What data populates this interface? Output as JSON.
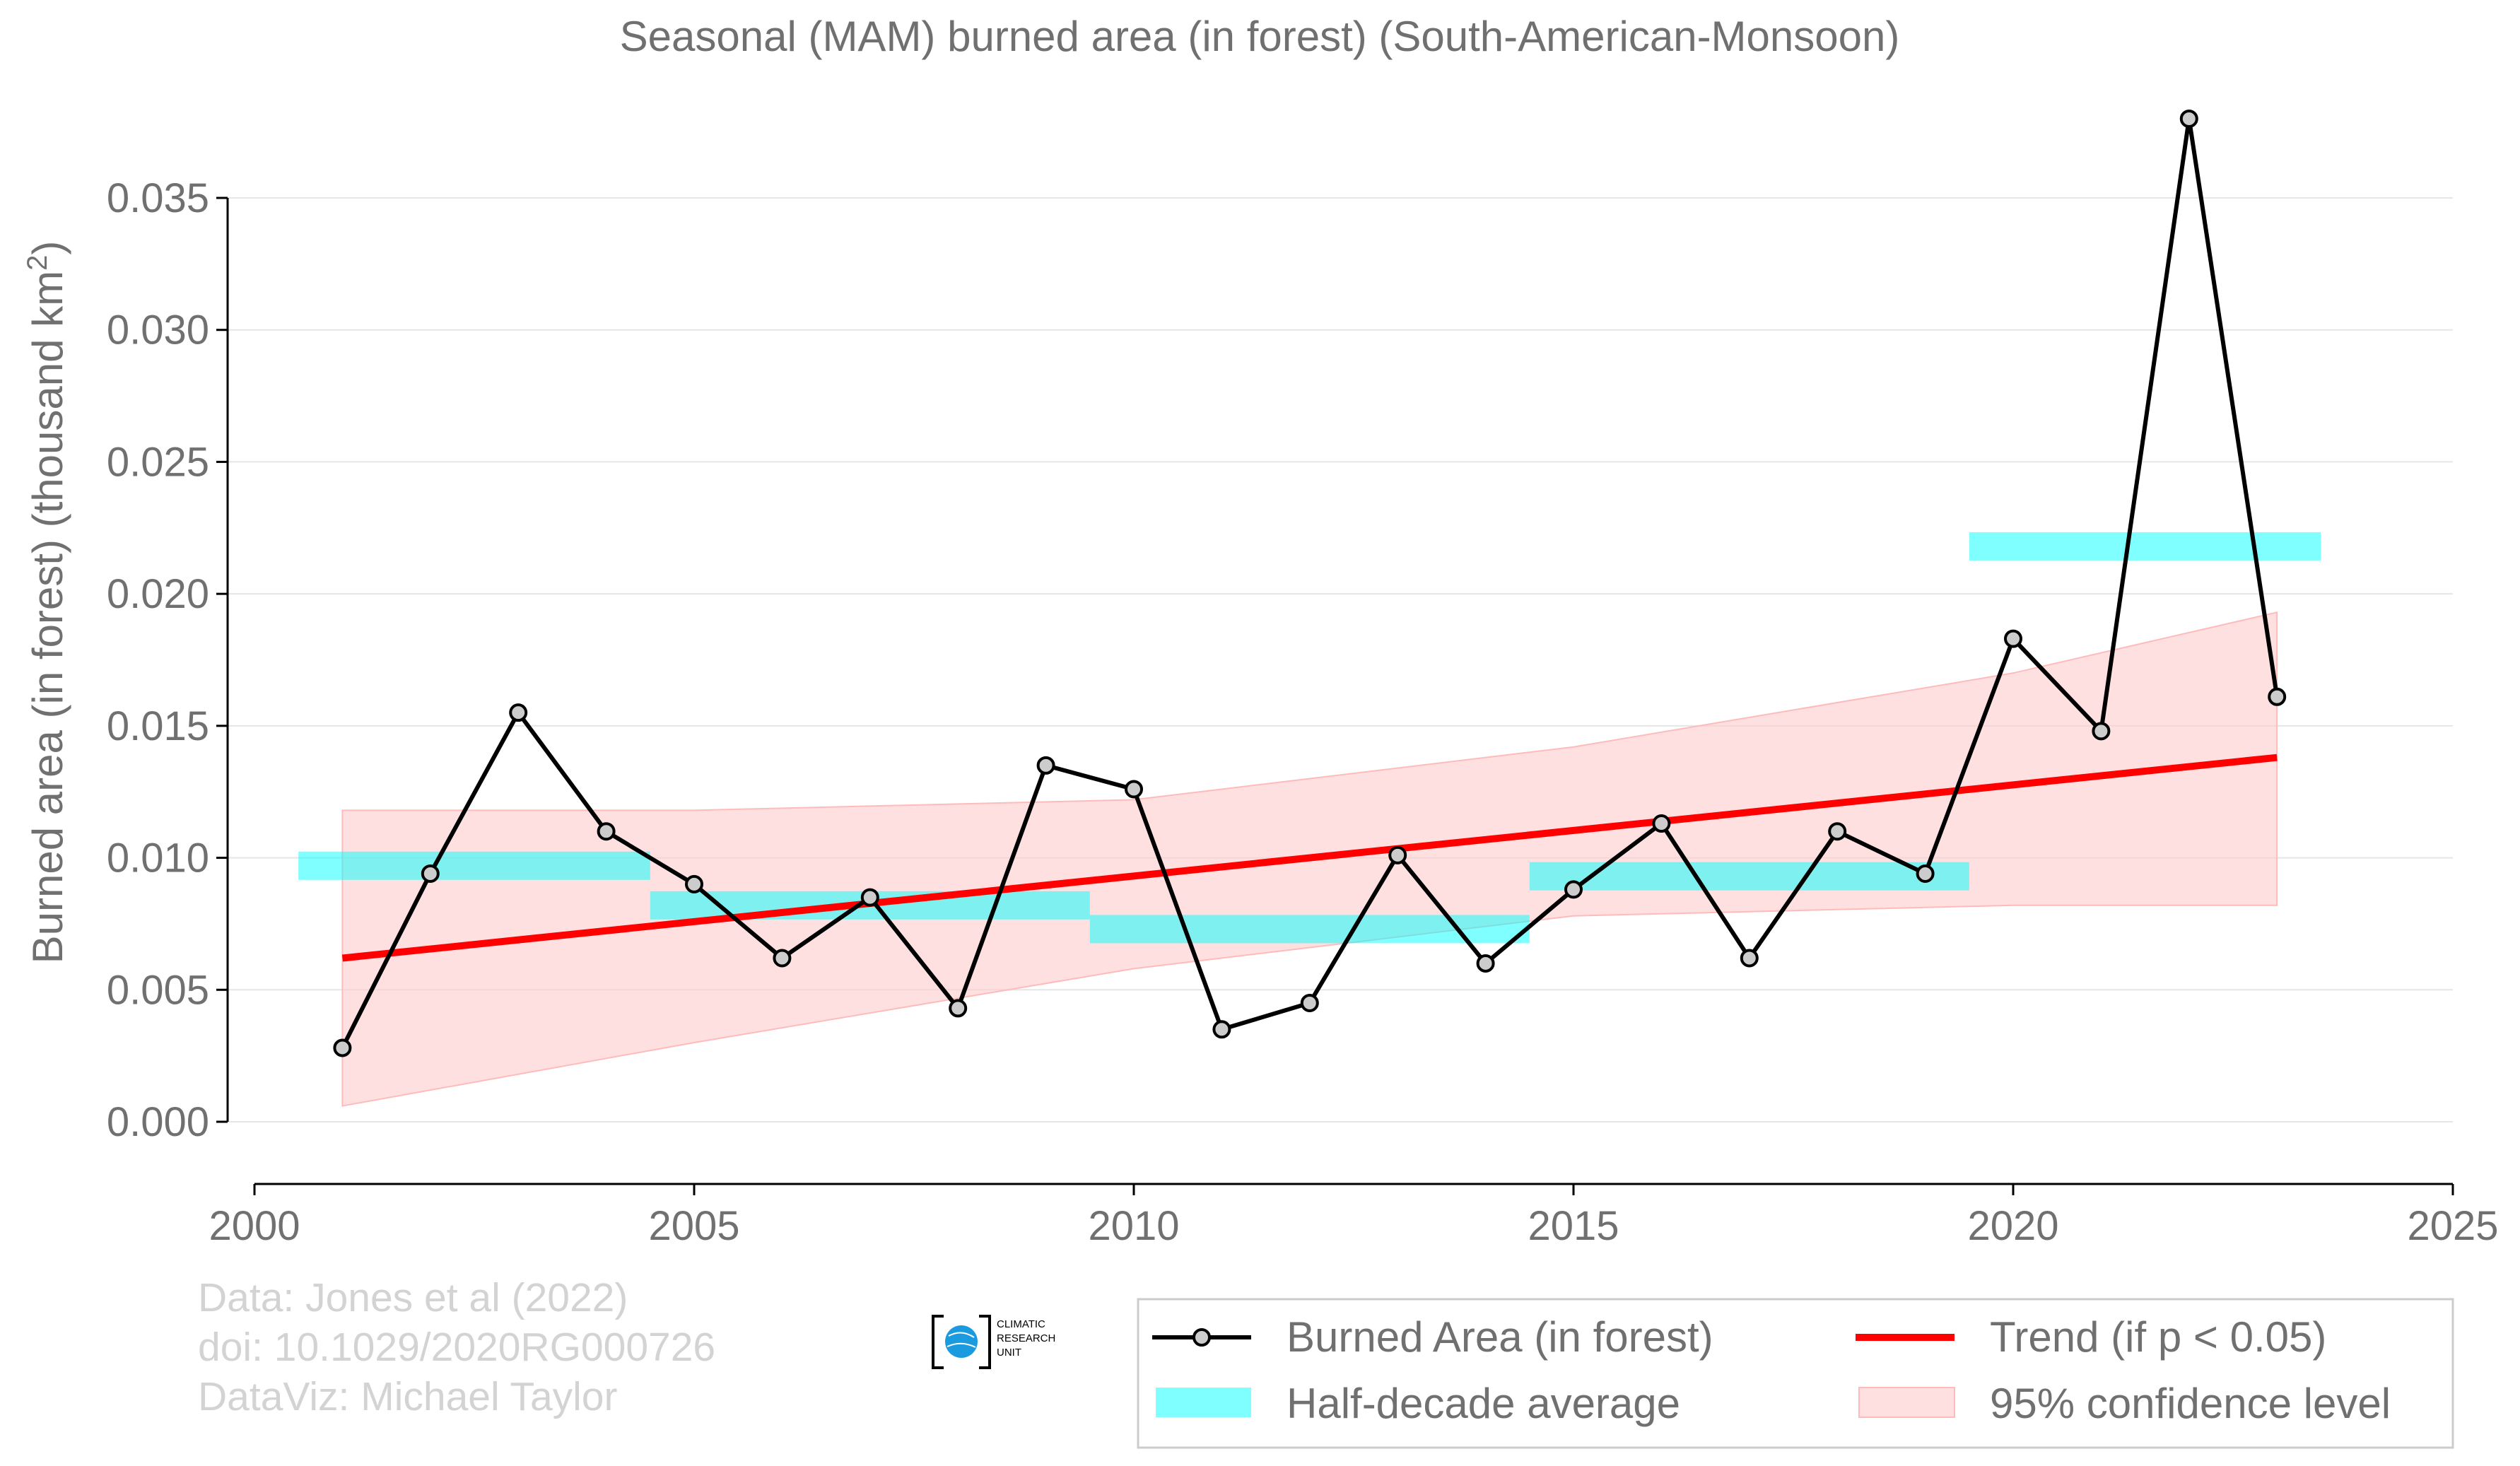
{
  "chart_data": {
    "type": "line",
    "title": "Seasonal (MAM) burned area (in forest) (South-American-Monsoon)",
    "ylabel_main": "Burned area (in forest) (thousand km",
    "ylabel_sup": "2",
    "ylabel_close": ")",
    "xlabel": "",
    "xlim": [
      2000,
      2025
    ],
    "ylim": [
      -0.0015,
      0.0385
    ],
    "xticks": [
      2000,
      2005,
      2010,
      2015,
      2020,
      2025
    ],
    "xtick_labels": [
      "2000",
      "2005",
      "2010",
      "2015",
      "2020",
      "2025"
    ],
    "yticks": [
      0.0,
      0.005,
      0.01,
      0.015,
      0.02,
      0.025,
      0.03,
      0.035
    ],
    "ytick_labels": [
      "0.000",
      "0.005",
      "0.010",
      "0.015",
      "0.020",
      "0.025",
      "0.030",
      "0.035"
    ],
    "grid": "horizontal",
    "series": [
      {
        "name": "Burned Area (in forest)",
        "x": [
          2001,
          2002,
          2003,
          2004,
          2005,
          2006,
          2007,
          2008,
          2009,
          2010,
          2011,
          2012,
          2013,
          2014,
          2015,
          2016,
          2017,
          2018,
          2019,
          2020,
          2021,
          2022,
          2023
        ],
        "values": [
          0.0028,
          0.0094,
          0.0155,
          0.011,
          0.009,
          0.0062,
          0.0085,
          0.0043,
          0.0135,
          0.0126,
          0.0035,
          0.0045,
          0.0101,
          0.006,
          0.0088,
          0.0113,
          0.0062,
          0.011,
          0.0094,
          0.0183,
          0.0148,
          0.038,
          0.0161
        ],
        "color": "#000000",
        "marker_fill": "#cccccc"
      }
    ],
    "half_decade_average": {
      "name": "Half-decade average",
      "color": "#00ffff",
      "segments": [
        {
          "x_start": 2000.5,
          "x_end": 2004.5,
          "value": 0.0097
        },
        {
          "x_start": 2004.5,
          "x_end": 2009.5,
          "value": 0.0082
        },
        {
          "x_start": 2009.5,
          "x_end": 2014.5,
          "value": 0.0073
        },
        {
          "x_start": 2014.5,
          "x_end": 2019.5,
          "value": 0.0093
        },
        {
          "x_start": 2019.5,
          "x_end": 2023.5,
          "value": 0.0218
        }
      ]
    },
    "trend": {
      "name": "Trend (if p < 0.05)",
      "color": "#ff0000",
      "x": [
        2001,
        2023
      ],
      "values": [
        0.0062,
        0.0138
      ]
    },
    "confidence": {
      "name": "95% confidence level",
      "color": "#ffcccc",
      "x": [
        2001,
        2005,
        2010,
        2015,
        2020,
        2023
      ],
      "upper": [
        0.0118,
        0.0118,
        0.0122,
        0.0142,
        0.017,
        0.0193
      ],
      "lower": [
        0.0006,
        0.003,
        0.0058,
        0.0078,
        0.0082,
        0.0082
      ]
    },
    "legend_position": "bottom-right"
  },
  "credits": {
    "line1": "Data: Jones et al (2022)",
    "line2": "doi: 10.1029/2020RG000726",
    "line3": "DataViz: Michael Taylor"
  },
  "logo": {
    "text1": "CLIMATIC",
    "text2": "RESEARCH",
    "text3": "UNIT",
    "color": "#1a9be0"
  },
  "legend": {
    "burned": "Burned Area (in forest)",
    "trend": "Trend (if p < 0.05)",
    "halfdecade": "Half-decade average",
    "confidence": "95% confidence level"
  }
}
